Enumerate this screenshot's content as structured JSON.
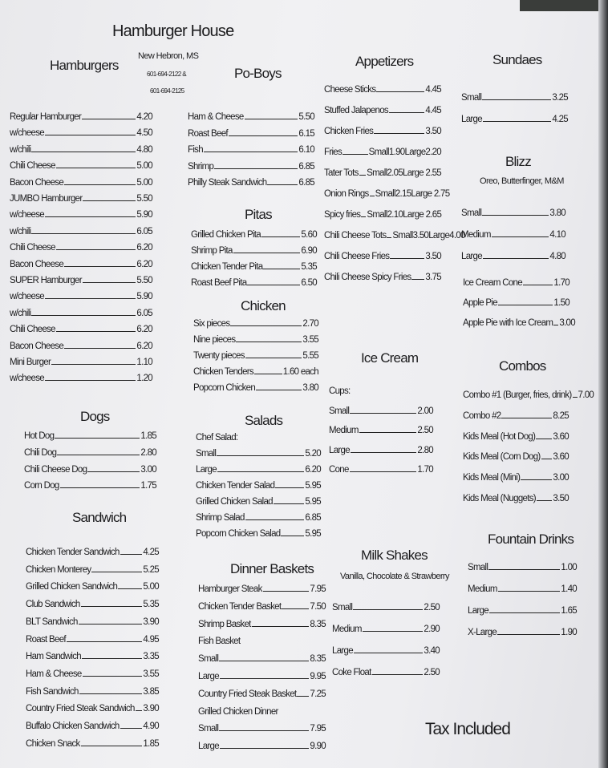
{
  "header": {
    "title": "Hamburger House",
    "location": "New Hebron, MS",
    "phone1": "601-694-2122 &",
    "phone2": "601-694-2125"
  },
  "footer": {
    "note": "Tax Included"
  },
  "sections": {
    "hamburgers": {
      "heading": "Hamburgers",
      "items": [
        {
          "name": "Regular Hamburger",
          "price": "4.20"
        },
        {
          "name": "w/cheese",
          "price": "4.50"
        },
        {
          "name": "w/chili",
          "price": "4.80"
        },
        {
          "name": "Chili Cheese",
          "price": "5.00"
        },
        {
          "name": "Bacon Cheese",
          "price": "5.00"
        },
        {
          "name": "JUMBO Hamburger",
          "price": "5.50"
        },
        {
          "name": "w/cheese",
          "price": "5.90"
        },
        {
          "name": "w/chili",
          "price": "6.05"
        },
        {
          "name": "Chili Cheese",
          "price": "6.20"
        },
        {
          "name": "Bacon Cheese",
          "price": "6.20"
        },
        {
          "name": "SUPER Hamburger",
          "price": "5.50"
        },
        {
          "name": "w/cheese",
          "price": "5.90"
        },
        {
          "name": "w/chili",
          "price": "6.05"
        },
        {
          "name": "Chili Cheese",
          "price": "6.20"
        },
        {
          "name": "Bacon Cheese",
          "price": "6.20"
        },
        {
          "name": "Mini Burger",
          "price": "1.10"
        },
        {
          "name": "w/cheese",
          "price": "1.20"
        }
      ]
    },
    "dogs": {
      "heading": "Dogs",
      "items": [
        {
          "name": "Hot Dog",
          "price": "1.85"
        },
        {
          "name": "Chili Dog",
          "price": "2.80"
        },
        {
          "name": "Chili Cheese Dog",
          "price": "3.00"
        },
        {
          "name": "Corn Dog",
          "price": "1.75"
        }
      ]
    },
    "sandwich": {
      "heading": "Sandwich",
      "items": [
        {
          "name": "Chicken Tender Sandwich",
          "price": "4.25"
        },
        {
          "name": "Chicken Monterey",
          "price": "5.25"
        },
        {
          "name": "Grilled Chicken Sandwich",
          "price": "5.00"
        },
        {
          "name": "Club Sandwich",
          "price": "5.35"
        },
        {
          "name": "BLT Sandwich",
          "price": "3.90"
        },
        {
          "name": "Roast Beef",
          "price": "4.95"
        },
        {
          "name": "Ham Sandwich",
          "price": "3.35"
        },
        {
          "name": "Ham & Cheese",
          "price": "3.55"
        },
        {
          "name": "Fish Sandwich",
          "price": "3.85"
        },
        {
          "name": "Country Fried Steak Sandwich",
          "price": "3.90"
        },
        {
          "name": "Buffalo Chicken Sandwich",
          "price": "4.90"
        },
        {
          "name": "Chicken Snack",
          "price": "1.85"
        }
      ]
    },
    "poboys": {
      "heading": "Po-Boys",
      "items": [
        {
          "name": "Ham & Cheese",
          "price": "5.50"
        },
        {
          "name": "Roast Beef",
          "price": "6.15"
        },
        {
          "name": "Fish",
          "price": "6.10"
        },
        {
          "name": "Shrimp",
          "price": "6.85"
        },
        {
          "name": "Philly Steak Sandwich",
          "price": "6.85"
        }
      ]
    },
    "pitas": {
      "heading": "Pitas",
      "items": [
        {
          "name": "Grilled Chicken Pita",
          "price": "5.60"
        },
        {
          "name": "Shrimp Pita",
          "price": "6.90"
        },
        {
          "name": "Chicken Tender Pita",
          "price": "5.35"
        },
        {
          "name": "Roast Beef Pita",
          "price": "6.50"
        }
      ]
    },
    "chicken": {
      "heading": "Chicken",
      "items": [
        {
          "name": "Six pieces",
          "price": "2.70"
        },
        {
          "name": "Nine pieces",
          "price": "3.55"
        },
        {
          "name": "Twenty pieces",
          "price": "5.55"
        },
        {
          "name": "Chicken Tenders",
          "price": "1.60 each"
        },
        {
          "name": "Popcorn Chicken",
          "price": "3.80"
        }
      ]
    },
    "salads": {
      "heading": "Salads",
      "items": [
        {
          "name": "Chef Salad:",
          "price": ""
        },
        {
          "name": "Small",
          "price": "5.20"
        },
        {
          "name": "Large",
          "price": "6.20"
        },
        {
          "name": "Chicken Tender Salad",
          "price": "5.95"
        },
        {
          "name": "Grilled Chicken Salad",
          "price": "5.95"
        },
        {
          "name": "Shrimp Salad",
          "price": "6.85"
        },
        {
          "name": "Popcorn Chicken Salad",
          "price": "5.95"
        }
      ]
    },
    "dinner": {
      "heading": "Dinner Baskets",
      "items": [
        {
          "name": "Hamburger Steak",
          "price": "7.95"
        },
        {
          "name": "Chicken Tender Basket",
          "price": "7.50"
        },
        {
          "name": "Shrimp Basket",
          "price": "8.35"
        },
        {
          "name": "Fish Basket",
          "price": ""
        },
        {
          "name": "Small",
          "price": "8.35"
        },
        {
          "name": "Large",
          "price": "9.95"
        },
        {
          "name": "Country Fried Steak Basket",
          "price": "7.25"
        },
        {
          "name": "Grilled Chicken Dinner",
          "price": ""
        },
        {
          "name": "Small",
          "price": "7.95"
        },
        {
          "name": "Large",
          "price": "9.90"
        }
      ]
    },
    "appetizers": {
      "heading": "Appetizers",
      "items": [
        {
          "name": "Cheese Sticks",
          "price": "4.45"
        },
        {
          "name": "Stuffed Jalapenos",
          "price": "4.45"
        },
        {
          "name": "Chicken Fries",
          "price": "3.50"
        },
        {
          "name": "Fries",
          "price": "Small1.90Large2.20"
        },
        {
          "name": "Tater Tots",
          "price": "Small2.05Large 2.55"
        },
        {
          "name": "Onion Rings",
          "price": "Small2.15Large 2.75"
        },
        {
          "name": "Spicy fries",
          "price": "Small2.10Large 2.65"
        },
        {
          "name": "Chili Cheese Tots",
          "price": "Small3.50Large4.00"
        },
        {
          "name": "Chili Cheese Fries",
          "price": "3.50"
        },
        {
          "name": "Chili Cheese Spicy Fries",
          "price": "3.75"
        }
      ]
    },
    "icecream": {
      "heading": "Ice Cream",
      "items": [
        {
          "name": "Cups:",
          "price": ""
        },
        {
          "name": "Small",
          "price": "2.00"
        },
        {
          "name": "Medium",
          "price": "2.50"
        },
        {
          "name": "Large",
          "price": "2.80"
        },
        {
          "name": "Cone",
          "price": "1.70"
        }
      ]
    },
    "milkshakes": {
      "heading": "Milk Shakes",
      "subtitle": "Vanilla, Chocolate & Strawberry",
      "items": [
        {
          "name": "Small",
          "price": "2.50"
        },
        {
          "name": "Medium",
          "price": "2.90"
        },
        {
          "name": "Large",
          "price": "3.40"
        },
        {
          "name": "Coke Float",
          "price": "2.50"
        }
      ]
    },
    "sundaes": {
      "heading": "Sundaes",
      "items": [
        {
          "name": "Small",
          "price": "3.25"
        },
        {
          "name": "Large",
          "price": "4.25"
        }
      ]
    },
    "blizz": {
      "heading": "Blizz",
      "subtitle": "Oreo, Butterfinger, M&M",
      "items": [
        {
          "name": "Small",
          "price": "3.80"
        },
        {
          "name": "Medium",
          "price": "4.10"
        },
        {
          "name": "Large",
          "price": "4.80"
        }
      ]
    },
    "desserts": {
      "heading": "",
      "items": [
        {
          "name": "Ice Cream Cone",
          "price": "1.70"
        },
        {
          "name": "Apple Pie",
          "price": "1.50"
        },
        {
          "name": "Apple Pie with Ice Cream",
          "price": "3.00"
        }
      ]
    },
    "combos": {
      "heading": "Combos",
      "items": [
        {
          "name": "Combo #1 (Burger, fries, drink)",
          "price": "7.00"
        },
        {
          "name": "Combo #2",
          "price": "8.25"
        },
        {
          "name": "Kids Meal (Hot Dog)",
          "price": "3.60"
        },
        {
          "name": "Kids Meal (Corn Dog)",
          "price": "3.60"
        },
        {
          "name": "Kids Meal (Mini)",
          "price": "3.00"
        },
        {
          "name": "Kids Meal (Nuggets)",
          "price": "3.50"
        }
      ]
    },
    "fountain": {
      "heading": "Fountain Drinks",
      "items": [
        {
          "name": "Small",
          "price": "1.00"
        },
        {
          "name": "Medium",
          "price": "1.40"
        },
        {
          "name": "Large",
          "price": "1.65"
        },
        {
          "name": "X-Large",
          "price": "1.90"
        }
      ]
    }
  }
}
